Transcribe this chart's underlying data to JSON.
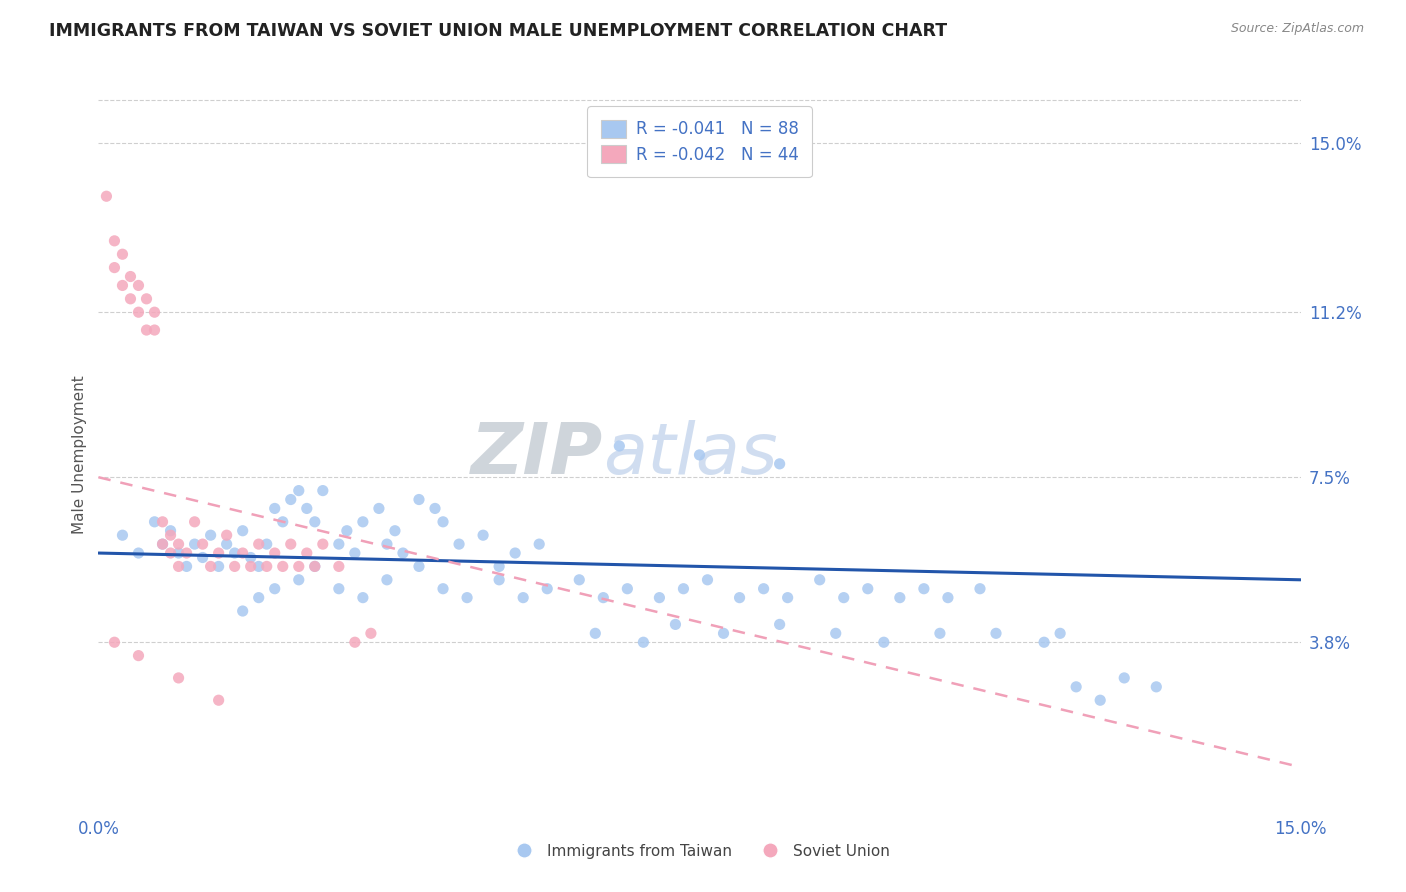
{
  "title": "IMMIGRANTS FROM TAIWAN VS SOVIET UNION MALE UNEMPLOYMENT CORRELATION CHART",
  "source": "Source: ZipAtlas.com",
  "ylabel": "Male Unemployment",
  "ytick_values": [
    0.038,
    0.075,
    0.112,
    0.15
  ],
  "ytick_labels": [
    "3.8%",
    "7.5%",
    "11.2%",
    "15.0%"
  ],
  "xtick_values": [
    0.0,
    0.15
  ],
  "xtick_labels": [
    "0.0%",
    "15.0%"
  ],
  "xmin": 0.0,
  "xmax": 0.15,
  "ymin": 0.0,
  "ymax": 0.16,
  "taiwan_R": -0.041,
  "taiwan_N": 88,
  "soviet_R": -0.042,
  "soviet_N": 44,
  "taiwan_dot_color": "#a8c8f0",
  "soviet_dot_color": "#f4a8bc",
  "taiwan_line_color": "#2255aa",
  "soviet_line_color": "#f0a0b8",
  "label_color": "#4472c4",
  "title_color": "#222222",
  "grid_color": "#bbbbbb",
  "taiwan_label": "Immigrants from Taiwan",
  "soviet_label": "Soviet Union",
  "taiwan_scatter_x": [
    0.003,
    0.005,
    0.007,
    0.008,
    0.009,
    0.01,
    0.011,
    0.012,
    0.013,
    0.014,
    0.015,
    0.016,
    0.017,
    0.018,
    0.019,
    0.02,
    0.021,
    0.022,
    0.023,
    0.024,
    0.025,
    0.026,
    0.027,
    0.028,
    0.03,
    0.031,
    0.032,
    0.033,
    0.035,
    0.036,
    0.037,
    0.038,
    0.04,
    0.042,
    0.043,
    0.045,
    0.048,
    0.05,
    0.052,
    0.055,
    0.018,
    0.02,
    0.022,
    0.025,
    0.027,
    0.03,
    0.033,
    0.036,
    0.04,
    0.043,
    0.046,
    0.05,
    0.053,
    0.056,
    0.06,
    0.063,
    0.066,
    0.07,
    0.073,
    0.076,
    0.08,
    0.083,
    0.086,
    0.09,
    0.093,
    0.096,
    0.1,
    0.103,
    0.106,
    0.11,
    0.062,
    0.068,
    0.072,
    0.078,
    0.085,
    0.092,
    0.098,
    0.105,
    0.112,
    0.118,
    0.122,
    0.125,
    0.128,
    0.132,
    0.065,
    0.075,
    0.085,
    0.12
  ],
  "taiwan_scatter_y": [
    0.062,
    0.058,
    0.065,
    0.06,
    0.063,
    0.058,
    0.055,
    0.06,
    0.057,
    0.062,
    0.055,
    0.06,
    0.058,
    0.063,
    0.057,
    0.055,
    0.06,
    0.068,
    0.065,
    0.07,
    0.072,
    0.068,
    0.065,
    0.072,
    0.06,
    0.063,
    0.058,
    0.065,
    0.068,
    0.06,
    0.063,
    0.058,
    0.07,
    0.068,
    0.065,
    0.06,
    0.062,
    0.055,
    0.058,
    0.06,
    0.045,
    0.048,
    0.05,
    0.052,
    0.055,
    0.05,
    0.048,
    0.052,
    0.055,
    0.05,
    0.048,
    0.052,
    0.048,
    0.05,
    0.052,
    0.048,
    0.05,
    0.048,
    0.05,
    0.052,
    0.048,
    0.05,
    0.048,
    0.052,
    0.048,
    0.05,
    0.048,
    0.05,
    0.048,
    0.05,
    0.04,
    0.038,
    0.042,
    0.04,
    0.042,
    0.04,
    0.038,
    0.04,
    0.04,
    0.038,
    0.028,
    0.025,
    0.03,
    0.028,
    0.082,
    0.08,
    0.078,
    0.04
  ],
  "soviet_scatter_x": [
    0.001,
    0.002,
    0.002,
    0.003,
    0.003,
    0.004,
    0.004,
    0.005,
    0.005,
    0.006,
    0.006,
    0.007,
    0.007,
    0.008,
    0.008,
    0.009,
    0.009,
    0.01,
    0.01,
    0.011,
    0.012,
    0.013,
    0.014,
    0.015,
    0.016,
    0.017,
    0.018,
    0.019,
    0.02,
    0.021,
    0.022,
    0.023,
    0.024,
    0.025,
    0.026,
    0.027,
    0.028,
    0.03,
    0.032,
    0.034,
    0.002,
    0.005,
    0.01,
    0.015
  ],
  "soviet_scatter_y": [
    0.138,
    0.128,
    0.122,
    0.118,
    0.125,
    0.115,
    0.12,
    0.112,
    0.118,
    0.108,
    0.115,
    0.108,
    0.112,
    0.06,
    0.065,
    0.058,
    0.062,
    0.055,
    0.06,
    0.058,
    0.065,
    0.06,
    0.055,
    0.058,
    0.062,
    0.055,
    0.058,
    0.055,
    0.06,
    0.055,
    0.058,
    0.055,
    0.06,
    0.055,
    0.058,
    0.055,
    0.06,
    0.055,
    0.038,
    0.04,
    0.038,
    0.035,
    0.03,
    0.025
  ]
}
